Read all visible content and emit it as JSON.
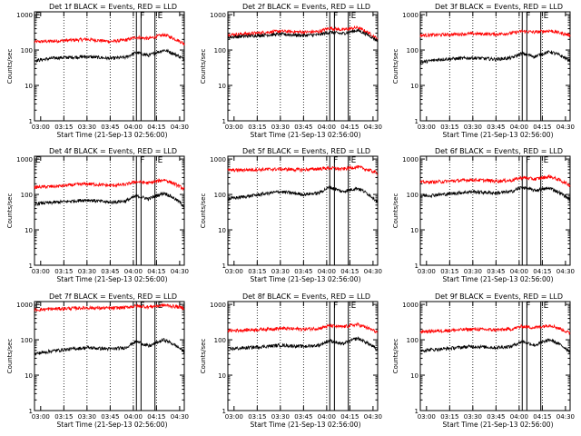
{
  "chart_data": {
    "type": "line",
    "shared": {
      "xlabel": "Start Time (21-Sep-13 02:56:00)",
      "ylabel": "Counts/sec",
      "x_ticks": [
        "03:00",
        "03:15",
        "03:30",
        "03:45",
        "04:00",
        "04:15",
        "04:30"
      ],
      "y_ticks": [
        "1",
        "10",
        "100",
        "1000"
      ],
      "ylim": [
        1,
        1200
      ],
      "y_scale": "log",
      "grid": "dotted vertical lines at 03:15, 03:30, 03:45, 04:00, 04:15",
      "event_lines": [
        "04:02",
        "04:05",
        "04:14"
      ],
      "event_labels": [
        "F",
        "E"
      ],
      "series_colors": {
        "events": "#000000",
        "lld": "#ff0000"
      }
    },
    "panels": [
      {
        "title": "Det 1f BLACK = Events, RED = LLD",
        "corner_label": "E",
        "events_values": [
          50,
          60,
          65,
          58,
          62,
          85,
          70,
          100,
          55
        ],
        "lld_values": [
          170,
          180,
          200,
          175,
          190,
          230,
          210,
          270,
          150
        ]
      },
      {
        "title": "Det 2f BLACK = Events, RED = LLD",
        "corner_label": "",
        "events_values": [
          230,
          250,
          280,
          260,
          270,
          320,
          290,
          360,
          180
        ],
        "lld_values": [
          270,
          290,
          340,
          320,
          330,
          420,
          370,
          430,
          200
        ]
      },
      {
        "title": "Det 3f BLACK = Events, RED = LLD",
        "corner_label": "",
        "events_values": [
          45,
          55,
          60,
          55,
          60,
          80,
          65,
          90,
          50
        ],
        "lld_values": [
          260,
          270,
          290,
          280,
          300,
          340,
          320,
          350,
          260
        ]
      },
      {
        "title": "Det 4f BLACK = Events, RED = LLD",
        "corner_label": "E",
        "events_values": [
          55,
          60,
          70,
          60,
          65,
          90,
          75,
          110,
          45
        ],
        "lld_values": [
          160,
          170,
          200,
          180,
          190,
          230,
          210,
          260,
          140
        ]
      },
      {
        "title": "Det 5f BLACK = Events, RED = LLD",
        "corner_label": "",
        "events_values": [
          75,
          90,
          120,
          100,
          110,
          160,
          120,
          150,
          60
        ],
        "lld_values": [
          480,
          500,
          520,
          500,
          530,
          560,
          520,
          600,
          400
        ]
      },
      {
        "title": "Det 6f BLACK = Events, RED = LLD",
        "corner_label": "",
        "events_values": [
          90,
          100,
          120,
          110,
          120,
          160,
          130,
          150,
          70
        ],
        "lld_values": [
          220,
          230,
          260,
          240,
          250,
          300,
          270,
          320,
          180
        ]
      },
      {
        "title": "Det 7f BLACK = Events, RED = LLD",
        "corner_label": "E",
        "events_values": [
          40,
          50,
          60,
          55,
          60,
          90,
          65,
          100,
          45
        ],
        "lld_values": [
          700,
          750,
          800,
          780,
          820,
          900,
          850,
          950,
          800
        ]
      },
      {
        "title": "Det 8f BLACK = Events, RED = LLD",
        "corner_label": "",
        "events_values": [
          55,
          60,
          70,
          65,
          70,
          95,
          75,
          110,
          50
        ],
        "lld_values": [
          180,
          190,
          210,
          200,
          210,
          250,
          230,
          270,
          160
        ]
      },
      {
        "title": "Det 9f BLACK = Events, RED = LLD",
        "corner_label": "",
        "events_values": [
          50,
          55,
          65,
          60,
          65,
          90,
          70,
          100,
          45
        ],
        "lld_values": [
          170,
          180,
          200,
          190,
          200,
          240,
          220,
          260,
          150
        ]
      }
    ]
  }
}
